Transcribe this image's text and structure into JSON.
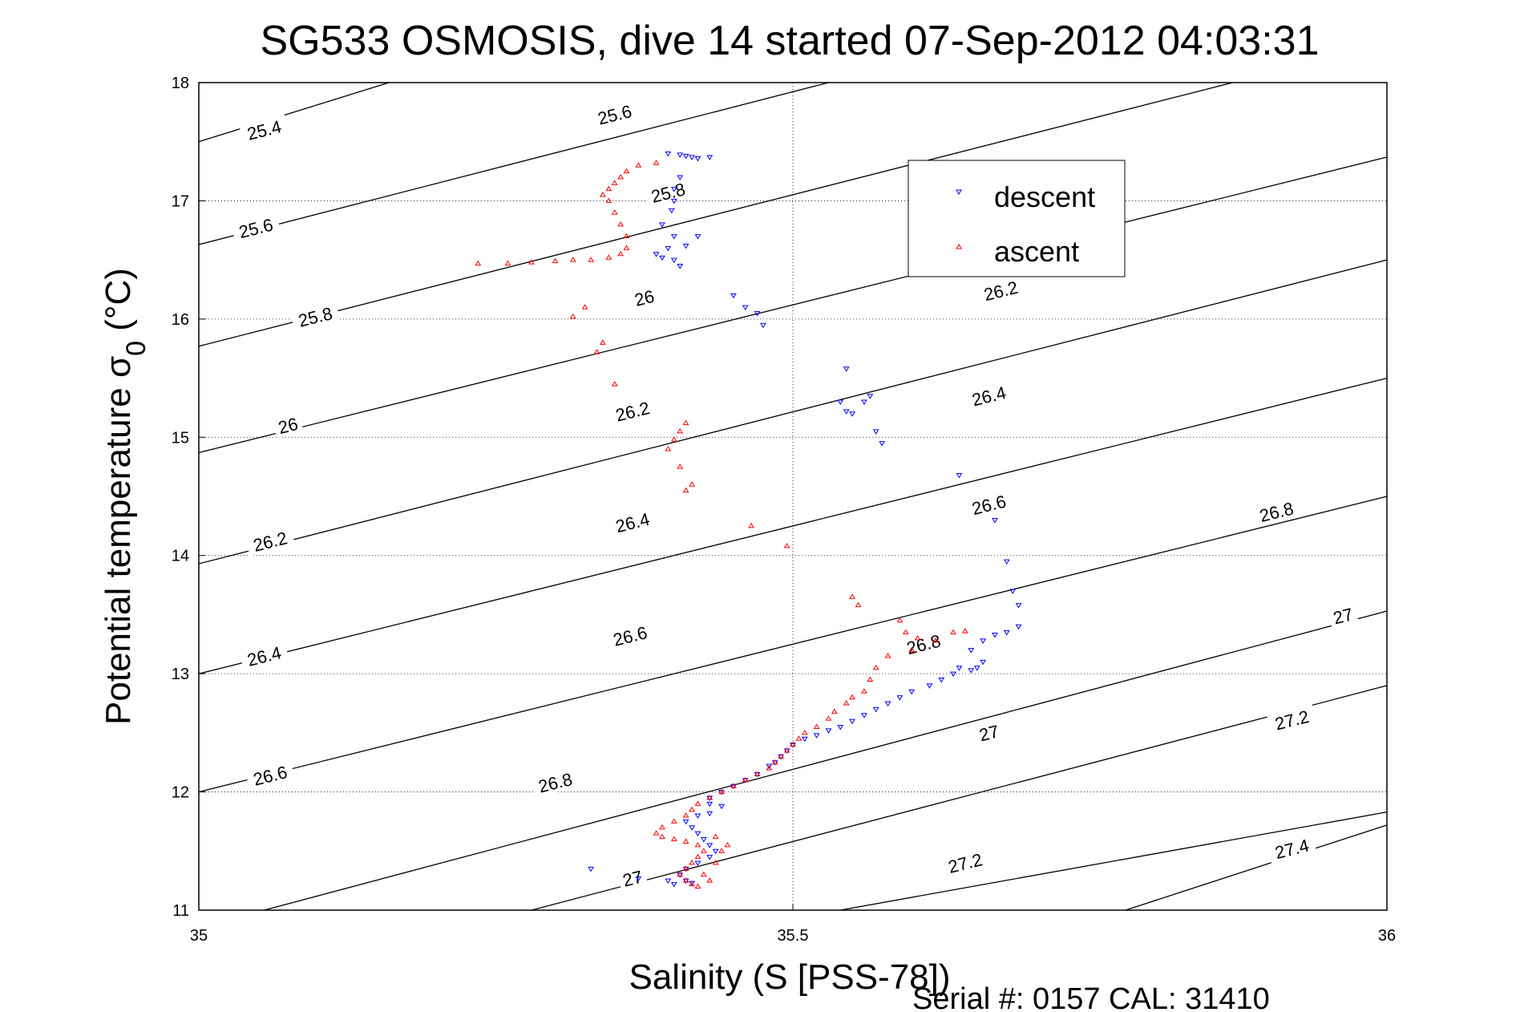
{
  "chart_data": {
    "type": "scatter",
    "title": "SG533 OSMOSIS, dive 14 started 07-Sep-2012 04:03:31",
    "xlabel": "Salinity (S [PSS-78])",
    "ylabel": "Potential temperature σ0 (°C)",
    "ylabel_main": "Potential temperature σ",
    "ylabel_sub": "0",
    "ylabel_tail": " (°C)",
    "footer": "Serial #: 0157  CAL: 31410",
    "xlim": [
      35,
      36
    ],
    "ylim": [
      11,
      18
    ],
    "x_ticks": [
      "35",
      "35.5",
      "36"
    ],
    "y_ticks": [
      "11",
      "12",
      "13",
      "14",
      "15",
      "16",
      "17",
      "18"
    ],
    "grid": "dotted",
    "legend_position": "top-right",
    "colors": {
      "descent": "#0000ff",
      "ascent": "#ff0000",
      "isopycnal": "#000000"
    },
    "series": [
      {
        "name": "descent",
        "marker": "triangle-down",
        "points": [
          [
            35.395,
            17.4
          ],
          [
            35.405,
            17.39
          ],
          [
            35.41,
            17.38
          ],
          [
            35.415,
            17.37
          ],
          [
            35.42,
            17.36
          ],
          [
            35.43,
            17.37
          ],
          [
            35.405,
            17.2
          ],
          [
            35.4,
            17.1
          ],
          [
            35.4,
            17.0
          ],
          [
            35.398,
            16.92
          ],
          [
            35.39,
            16.8
          ],
          [
            35.4,
            16.7
          ],
          [
            35.395,
            16.6
          ],
          [
            35.385,
            16.55
          ],
          [
            35.39,
            16.52
          ],
          [
            35.4,
            16.5
          ],
          [
            35.405,
            16.45
          ],
          [
            35.41,
            16.62
          ],
          [
            35.42,
            16.7
          ],
          [
            35.45,
            16.2
          ],
          [
            35.46,
            16.1
          ],
          [
            35.47,
            16.05
          ],
          [
            35.475,
            15.95
          ],
          [
            35.545,
            15.58
          ],
          [
            35.54,
            15.3
          ],
          [
            35.545,
            15.22
          ],
          [
            35.55,
            15.2
          ],
          [
            35.56,
            15.3
          ],
          [
            35.565,
            15.35
          ],
          [
            35.57,
            15.05
          ],
          [
            35.575,
            14.95
          ],
          [
            35.64,
            14.68
          ],
          [
            35.67,
            14.3
          ],
          [
            35.68,
            13.95
          ],
          [
            35.685,
            13.7
          ],
          [
            35.69,
            13.58
          ],
          [
            35.69,
            13.4
          ],
          [
            35.68,
            13.35
          ],
          [
            35.67,
            13.33
          ],
          [
            35.66,
            13.28
          ],
          [
            35.65,
            13.2
          ],
          [
            35.66,
            13.1
          ],
          [
            35.655,
            13.05
          ],
          [
            35.65,
            13.03
          ],
          [
            35.64,
            13.05
          ],
          [
            35.635,
            13.0
          ],
          [
            35.625,
            12.95
          ],
          [
            35.615,
            12.9
          ],
          [
            35.6,
            12.85
          ],
          [
            35.59,
            12.8
          ],
          [
            35.58,
            12.75
          ],
          [
            35.57,
            12.7
          ],
          [
            35.56,
            12.65
          ],
          [
            35.55,
            12.6
          ],
          [
            35.54,
            12.55
          ],
          [
            35.53,
            12.52
          ],
          [
            35.52,
            12.48
          ],
          [
            35.51,
            12.45
          ],
          [
            35.5,
            12.4
          ],
          [
            35.495,
            12.35
          ],
          [
            35.49,
            12.3
          ],
          [
            35.485,
            12.25
          ],
          [
            35.48,
            12.22
          ],
          [
            35.47,
            12.15
          ],
          [
            35.46,
            12.1
          ],
          [
            35.45,
            12.05
          ],
          [
            35.44,
            12.0
          ],
          [
            35.43,
            11.95
          ],
          [
            35.43,
            11.9
          ],
          [
            35.44,
            11.88
          ],
          [
            35.43,
            11.82
          ],
          [
            35.42,
            11.8
          ],
          [
            35.41,
            11.75
          ],
          [
            35.415,
            11.7
          ],
          [
            35.42,
            11.65
          ],
          [
            35.425,
            11.6
          ],
          [
            35.43,
            11.55
          ],
          [
            35.435,
            11.5
          ],
          [
            35.43,
            11.45
          ],
          [
            35.42,
            11.4
          ],
          [
            35.41,
            11.35
          ],
          [
            35.405,
            11.3
          ],
          [
            35.41,
            11.25
          ],
          [
            35.415,
            11.23
          ],
          [
            35.4,
            11.22
          ],
          [
            35.395,
            11.25
          ],
          [
            35.33,
            11.35
          ],
          [
            35.37,
            11.27
          ]
        ]
      },
      {
        "name": "ascent",
        "marker": "triangle-up",
        "points": [
          [
            35.385,
            17.32
          ],
          [
            35.37,
            17.3
          ],
          [
            35.36,
            17.25
          ],
          [
            35.355,
            17.2
          ],
          [
            35.35,
            17.15
          ],
          [
            35.345,
            17.1
          ],
          [
            35.34,
            17.05
          ],
          [
            35.345,
            17.0
          ],
          [
            35.35,
            16.9
          ],
          [
            35.355,
            16.8
          ],
          [
            35.36,
            16.7
          ],
          [
            35.36,
            16.6
          ],
          [
            35.355,
            16.55
          ],
          [
            35.345,
            16.52
          ],
          [
            35.33,
            16.5
          ],
          [
            35.315,
            16.5
          ],
          [
            35.3,
            16.49
          ],
          [
            35.28,
            16.48
          ],
          [
            35.26,
            16.47
          ],
          [
            35.235,
            16.47
          ],
          [
            35.325,
            16.1
          ],
          [
            35.315,
            16.02
          ],
          [
            35.34,
            15.8
          ],
          [
            35.335,
            15.72
          ],
          [
            35.35,
            15.45
          ],
          [
            35.41,
            15.12
          ],
          [
            35.405,
            15.05
          ],
          [
            35.4,
            14.98
          ],
          [
            35.395,
            14.9
          ],
          [
            35.405,
            14.75
          ],
          [
            35.415,
            14.6
          ],
          [
            35.41,
            14.55
          ],
          [
            35.465,
            14.25
          ],
          [
            35.495,
            14.08
          ],
          [
            35.55,
            13.65
          ],
          [
            35.555,
            13.58
          ],
          [
            35.59,
            13.45
          ],
          [
            35.595,
            13.35
          ],
          [
            35.605,
            13.3
          ],
          [
            35.62,
            13.28
          ],
          [
            35.635,
            13.35
          ],
          [
            35.645,
            13.36
          ],
          [
            35.6,
            13.2
          ],
          [
            35.58,
            13.15
          ],
          [
            35.57,
            13.05
          ],
          [
            35.565,
            12.95
          ],
          [
            35.56,
            12.85
          ],
          [
            35.55,
            12.8
          ],
          [
            35.545,
            12.75
          ],
          [
            35.535,
            12.68
          ],
          [
            35.53,
            12.62
          ],
          [
            35.52,
            12.55
          ],
          [
            35.51,
            12.5
          ],
          [
            35.505,
            12.45
          ],
          [
            35.5,
            12.4
          ],
          [
            35.495,
            12.35
          ],
          [
            35.49,
            12.3
          ],
          [
            35.485,
            12.25
          ],
          [
            35.48,
            12.2
          ],
          [
            35.47,
            12.15
          ],
          [
            35.46,
            12.1
          ],
          [
            35.45,
            12.05
          ],
          [
            35.44,
            12.0
          ],
          [
            35.43,
            11.95
          ],
          [
            35.42,
            11.9
          ],
          [
            35.415,
            11.85
          ],
          [
            35.41,
            11.8
          ],
          [
            35.4,
            11.75
          ],
          [
            35.39,
            11.7
          ],
          [
            35.385,
            11.65
          ],
          [
            35.39,
            11.62
          ],
          [
            35.4,
            11.6
          ],
          [
            35.41,
            11.58
          ],
          [
            35.42,
            11.55
          ],
          [
            35.425,
            11.5
          ],
          [
            35.42,
            11.45
          ],
          [
            35.415,
            11.4
          ],
          [
            35.41,
            11.35
          ],
          [
            35.405,
            11.3
          ],
          [
            35.41,
            11.25
          ],
          [
            35.415,
            11.22
          ],
          [
            35.42,
            11.2
          ],
          [
            35.43,
            11.25
          ],
          [
            35.425,
            11.3
          ],
          [
            35.435,
            11.4
          ],
          [
            35.44,
            11.5
          ],
          [
            35.445,
            11.55
          ],
          [
            35.435,
            11.62
          ]
        ]
      }
    ],
    "isopycnals": [
      {
        "label": "25.4",
        "points": [
          [
            35,
            17.5
          ],
          [
            35.16,
            18.0
          ]
        ]
      },
      {
        "label": "25.6",
        "points": [
          [
            35,
            16.63
          ],
          [
            35.53,
            18.0
          ]
        ]
      },
      {
        "label": "25.8",
        "points": [
          [
            35,
            15.77
          ],
          [
            35.87,
            18.0
          ]
        ]
      },
      {
        "label": "26",
        "points": [
          [
            35,
            14.87
          ],
          [
            36,
            17.37
          ]
        ]
      },
      {
        "label": "26.2",
        "points": [
          [
            35,
            13.93
          ],
          [
            36,
            16.5
          ]
        ]
      },
      {
        "label": "26.4",
        "points": [
          [
            35,
            13.0
          ],
          [
            36,
            15.5
          ]
        ]
      },
      {
        "label": "26.6",
        "points": [
          [
            35,
            12.0
          ],
          [
            36,
            14.5
          ]
        ]
      },
      {
        "label": "26.8",
        "points": [
          [
            35.055,
            11.0
          ],
          [
            36,
            13.53
          ]
        ]
      },
      {
        "label": "27",
        "points": [
          [
            35.28,
            11.0
          ],
          [
            36,
            12.9
          ]
        ]
      },
      {
        "label": "27.2",
        "points": [
          [
            35.54,
            11.0
          ],
          [
            36,
            11.83
          ]
        ]
      },
      {
        "label": "27.4",
        "points": [
          [
            35.78,
            11.0
          ],
          [
            36,
            11.72
          ]
        ]
      }
    ],
    "contour_labels": [
      {
        "text": "25.4",
        "x": 35.055,
        "y": 17.6
      },
      {
        "text": "25.6",
        "x": 35.35,
        "y": 17.73
      },
      {
        "text": "25.8",
        "x": 35.395,
        "y": 17.07
      },
      {
        "text": "25.6",
        "x": 35.048,
        "y": 16.77
      },
      {
        "text": "25.8",
        "x": 35.098,
        "y": 16.02
      },
      {
        "text": "26",
        "x": 35.375,
        "y": 16.18
      },
      {
        "text": "26.2",
        "x": 35.675,
        "y": 16.24
      },
      {
        "text": "26",
        "x": 35.075,
        "y": 15.1
      },
      {
        "text": "26.2",
        "x": 35.365,
        "y": 15.22
      },
      {
        "text": "26.4",
        "x": 35.665,
        "y": 15.35
      },
      {
        "text": "26.2",
        "x": 35.06,
        "y": 14.12
      },
      {
        "text": "26.4",
        "x": 35.365,
        "y": 14.28
      },
      {
        "text": "26.6",
        "x": 35.665,
        "y": 14.43
      },
      {
        "text": "26.8",
        "x": 35.907,
        "y": 14.37
      },
      {
        "text": "26.4",
        "x": 35.055,
        "y": 13.15
      },
      {
        "text": "26.6",
        "x": 35.363,
        "y": 13.32
      },
      {
        "text": "26.8",
        "x": 35.61,
        "y": 13.25
      },
      {
        "text": "27",
        "x": 35.963,
        "y": 13.49
      },
      {
        "text": "26.6",
        "x": 35.06,
        "y": 12.14
      },
      {
        "text": "26.8",
        "x": 35.3,
        "y": 12.08
      },
      {
        "text": "27",
        "x": 35.665,
        "y": 12.5
      },
      {
        "text": "27.2",
        "x": 35.92,
        "y": 12.61
      },
      {
        "text": "27",
        "x": 35.365,
        "y": 11.27
      },
      {
        "text": "27.2",
        "x": 35.645,
        "y": 11.4
      },
      {
        "text": "27.4",
        "x": 35.92,
        "y": 11.52
      }
    ],
    "legend": [
      "descent",
      "ascent"
    ]
  }
}
